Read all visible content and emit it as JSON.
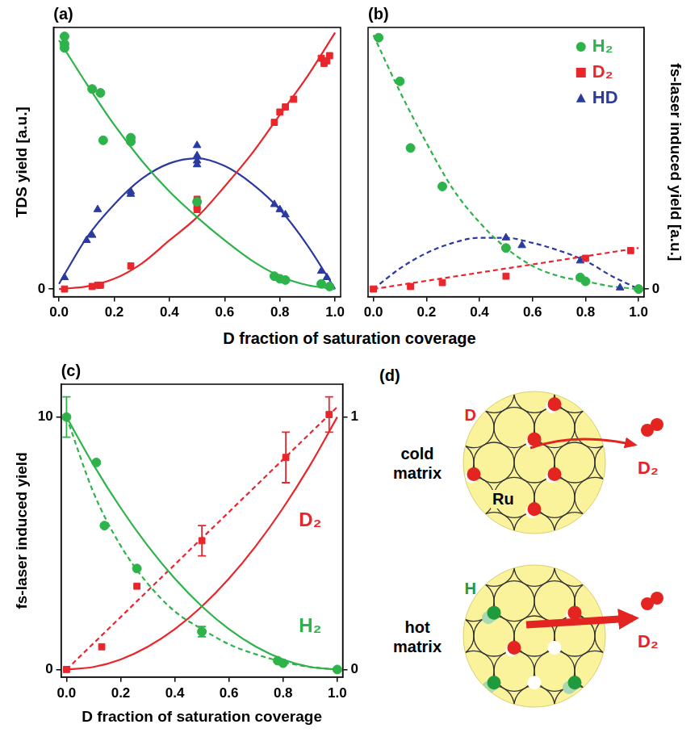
{
  "chart_data": [
    {
      "type": "scatter",
      "panel": "(a)",
      "ylabel": "TDS yield [a.u.]",
      "xlim": [
        -0.02,
        1.02
      ],
      "xticks": [
        {
          "value": 0,
          "label": "0.0"
        },
        0.2,
        0.4,
        0.6,
        0.8,
        {
          "value": 1,
          "label": "1.0"
        }
      ],
      "ylim": [
        -0.03,
        1.02
      ],
      "yticks": [
        0
      ],
      "grid": false,
      "series": [
        {
          "name": "H₂",
          "color": "#2eb34a",
          "marker": "circle",
          "x": [
            0.02,
            0.02,
            0.02,
            0.12,
            0.15,
            0.16,
            0.26,
            0.26,
            0.5,
            0.78,
            0.8,
            0.82,
            0.95,
            0.98
          ],
          "values": [
            0.985,
            0.955,
            0.94,
            0.78,
            0.765,
            0.58,
            0.59,
            0.575,
            0.34,
            0.05,
            0.04,
            0.035,
            0.02,
            0.01
          ],
          "fits": [
            {
              "x": [
                0,
                0.1,
                0.2,
                0.3,
                0.4,
                0.5,
                0.6,
                0.7,
                0.8,
                0.9,
                1.0
              ],
              "values": [
                0.97,
                0.8,
                0.64,
                0.5,
                0.38,
                0.28,
                0.19,
                0.11,
                0.05,
                0.015,
                0
              ],
              "line_style": "solid"
            }
          ]
        },
        {
          "name": "D₂",
          "color": "#e8262b",
          "marker": "square",
          "x": [
            0.02,
            0.12,
            0.14,
            0.15,
            0.26,
            0.5,
            0.5,
            0.5,
            0.78,
            0.8,
            0.82,
            0.85,
            0.95,
            0.96,
            0.97,
            0.98
          ],
          "values": [
            0,
            0.01,
            0.015,
            0.015,
            0.09,
            0.35,
            0.32,
            0.31,
            0.65,
            0.69,
            0.71,
            0.74,
            0.9,
            0.88,
            0.89,
            0.91
          ],
          "fits": [
            {
              "x": [
                0,
                0.1,
                0.2,
                0.3,
                0.4,
                0.5,
                0.6,
                0.7,
                0.8,
                0.9,
                1.0
              ],
              "values": [
                0,
                0.01,
                0.04,
                0.1,
                0.19,
                0.28,
                0.4,
                0.53,
                0.68,
                0.83,
                1.0
              ],
              "line_style": "solid"
            }
          ]
        },
        {
          "name": "HD",
          "color": "#2b3a9e",
          "marker": "triangle",
          "x": [
            0.02,
            0.1,
            0.12,
            0.14,
            0.26,
            0.26,
            0.5,
            0.5,
            0.5,
            0.5,
            0.78,
            0.8,
            0.82,
            0.95,
            0.97
          ],
          "values": [
            0.045,
            0.19,
            0.21,
            0.31,
            0.37,
            0.38,
            0.56,
            0.52,
            0.5,
            0.485,
            0.33,
            0.31,
            0.29,
            0.07,
            0.045
          ],
          "fits": [
            {
              "x": [
                0,
                0.1,
                0.2,
                0.3,
                0.4,
                0.5,
                0.6,
                0.7,
                0.8,
                0.9,
                1.0
              ],
              "values": [
                0.02,
                0.2,
                0.33,
                0.43,
                0.49,
                0.51,
                0.48,
                0.41,
                0.31,
                0.17,
                0
              ],
              "line_style": "solid"
            }
          ]
        }
      ]
    },
    {
      "type": "scatter",
      "panel": "(b)",
      "ylabel": "fs-laser induced yield [a.u.]",
      "xlim": [
        -0.02,
        1.02
      ],
      "xticks": [
        {
          "value": 0,
          "label": "0.0"
        },
        0.2,
        0.4,
        0.6,
        0.8,
        {
          "value": 1,
          "label": "1.0"
        }
      ],
      "ylim": [
        -0.03,
        1.02
      ],
      "yticks": [
        0
      ],
      "grid": false,
      "legend": "upper right",
      "series": [
        {
          "name": "H₂",
          "color": "#2eb34a",
          "marker": "circle",
          "x": [
            0.02,
            0.1,
            0.14,
            0.26,
            0.5,
            0.78,
            0.8,
            1.0
          ],
          "values": [
            0.98,
            0.81,
            0.55,
            0.4,
            0.16,
            0.045,
            0.03,
            0
          ],
          "fits": [
            {
              "x": [
                0,
                0.1,
                0.2,
                0.3,
                0.4,
                0.5,
                0.6,
                0.7,
                0.8,
                0.9,
                1.0
              ],
              "values": [
                0.99,
                0.77,
                0.57,
                0.39,
                0.26,
                0.16,
                0.09,
                0.05,
                0.03,
                0.01,
                0
              ],
              "line_style": "dashed"
            }
          ]
        },
        {
          "name": "D₂",
          "color": "#e8262b",
          "marker": "square",
          "x": [
            0,
            0.14,
            0.26,
            0.5,
            0.8,
            0.97
          ],
          "values": [
            0,
            0.01,
            0.025,
            0.05,
            0.12,
            0.15
          ],
          "fits": [
            {
              "x": [
                0,
                1.0
              ],
              "values": [
                0,
                0.16
              ],
              "line_style": "dashed"
            }
          ]
        },
        {
          "name": "HD",
          "color": "#2b3a9e",
          "marker": "triangle",
          "x": [
            0.5,
            0.56,
            0.78,
            0.93
          ],
          "values": [
            0.2,
            0.17,
            0.11,
            0.005
          ],
          "fits": [
            {
              "x": [
                0,
                0.1,
                0.2,
                0.3,
                0.4,
                0.5,
                0.6,
                0.7,
                0.8,
                0.9,
                1.0
              ],
              "values": [
                0,
                0.08,
                0.14,
                0.18,
                0.2,
                0.2,
                0.18,
                0.15,
                0.11,
                0.05,
                0
              ],
              "line_style": "dashed"
            }
          ]
        }
      ]
    },
    {
      "type": "scatter",
      "panel": "(c)",
      "ylabel": "fs-laser induced yield",
      "xlabel": "D fraction of saturation coverage",
      "xlim": [
        -0.02,
        1.02
      ],
      "xticks": [
        {
          "value": 0,
          "label": "0.0"
        },
        0.2,
        0.4,
        0.6,
        0.8,
        {
          "value": 1,
          "label": "1.0"
        }
      ],
      "ylim": [
        -0.3,
        11.3
      ],
      "yticks": [
        0,
        10
      ],
      "y2lim": [
        -0.03,
        1.13
      ],
      "y2ticks": [
        0,
        1
      ],
      "grid": false,
      "series": [
        {
          "name": "H₂",
          "color": "#2eb34a",
          "marker": "circle",
          "axis": "y",
          "x": [
            0.0,
            0.11,
            0.14,
            0.26,
            0.5,
            0.78,
            0.8,
            1.0
          ],
          "values": [
            10,
            8.2,
            5.7,
            4.0,
            1.5,
            0.35,
            0.25,
            0
          ],
          "errors": [
            0.8,
            null,
            null,
            null,
            0.2,
            null,
            null,
            null
          ],
          "fits": [
            {
              "x": [
                0,
                0.1,
                0.2,
                0.3,
                0.4,
                0.5,
                0.6,
                0.7,
                0.8,
                0.9,
                1.0
              ],
              "values": [
                10,
                8.1,
                6.4,
                4.9,
                3.6,
                2.5,
                1.6,
                0.9,
                0.4,
                0.1,
                0
              ],
              "line_style": "solid"
            },
            {
              "x": [
                0,
                0.1,
                0.2,
                0.3,
                0.4,
                0.5,
                0.6,
                0.7,
                0.8,
                0.9,
                1.0
              ],
              "values": [
                10,
                7.0,
                4.9,
                3.4,
                2.3,
                1.6,
                1.0,
                0.6,
                0.3,
                0.1,
                0
              ],
              "line_style": "dashed"
            }
          ]
        },
        {
          "name": "D₂",
          "color": "#e8262b",
          "marker": "square",
          "axis": "y2",
          "x": [
            0,
            0.13,
            0.26,
            0.5,
            0.81,
            0.97
          ],
          "values": [
            0,
            0.09,
            0.33,
            0.51,
            0.84,
            1.01
          ],
          "errors": [
            null,
            null,
            null,
            0.06,
            0.1,
            0.07
          ],
          "fits": [
            {
              "x": [
                0,
                1.0
              ],
              "values": [
                0,
                1.04
              ],
              "line_style": "dashed"
            },
            {
              "x": [
                0,
                0.1,
                0.2,
                0.3,
                0.4,
                0.5,
                0.6,
                0.7,
                0.8,
                0.9,
                1.0
              ],
              "values": [
                0,
                0.01,
                0.04,
                0.09,
                0.16,
                0.25,
                0.36,
                0.49,
                0.64,
                0.81,
                1.0
              ],
              "line_style": "solid"
            }
          ]
        }
      ],
      "annotations": [
        {
          "text": "D₂",
          "x": 0.9,
          "y": 5.9,
          "color": "#e8262b"
        },
        {
          "text": "H₂",
          "x": 0.9,
          "y": 1.7,
          "color": "#2eb34a"
        }
      ]
    }
  ],
  "shared_xlabel": "D fraction of saturation coverage",
  "diagram": {
    "panel": "(d)",
    "items": [
      {
        "title": "cold matrix",
        "adsorbate": "D",
        "substrate": "Ru",
        "product": "D₂"
      },
      {
        "title": "hot matrix",
        "adsorbate": "H",
        "product": "D₂"
      }
    ]
  }
}
